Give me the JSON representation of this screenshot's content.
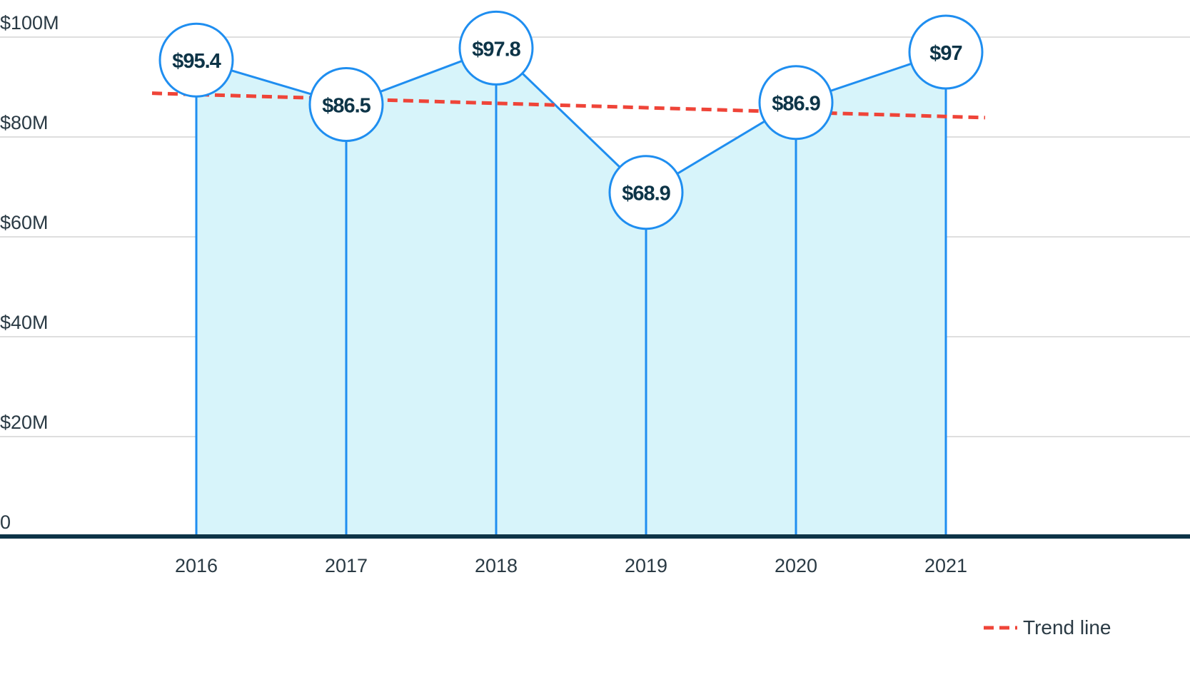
{
  "chart_data": {
    "type": "area",
    "categories": [
      "2016",
      "2017",
      "2018",
      "2019",
      "2020",
      "2021"
    ],
    "series": [
      {
        "values": [
          95.4,
          86.5,
          97.8,
          68.9,
          86.9,
          97
        ],
        "labels": [
          "$95.4",
          "$86.5",
          "$97.8",
          "$68.9",
          "$86.9",
          "$97"
        ]
      }
    ],
    "trend_line": {
      "name": "Trend line",
      "start": 88.5,
      "end": 84.1
    },
    "y_ticks": [
      {
        "value": 100,
        "label": "$100M"
      },
      {
        "value": 80,
        "label": "$80M"
      },
      {
        "value": 60,
        "label": "$60M"
      },
      {
        "value": 40,
        "label": "$40M"
      },
      {
        "value": 20,
        "label": "$20M"
      },
      {
        "value": 0,
        "label": "0"
      }
    ],
    "ylim": [
      0,
      100
    ],
    "grid": true,
    "legend_position": "bottom-right",
    "colors": {
      "line": "#1f8ef0",
      "fill": "#d7f4fa",
      "trend": "#ef4438",
      "axis": "#0d3447",
      "grid": "#c9c9c9",
      "label": "#0d3447"
    }
  }
}
